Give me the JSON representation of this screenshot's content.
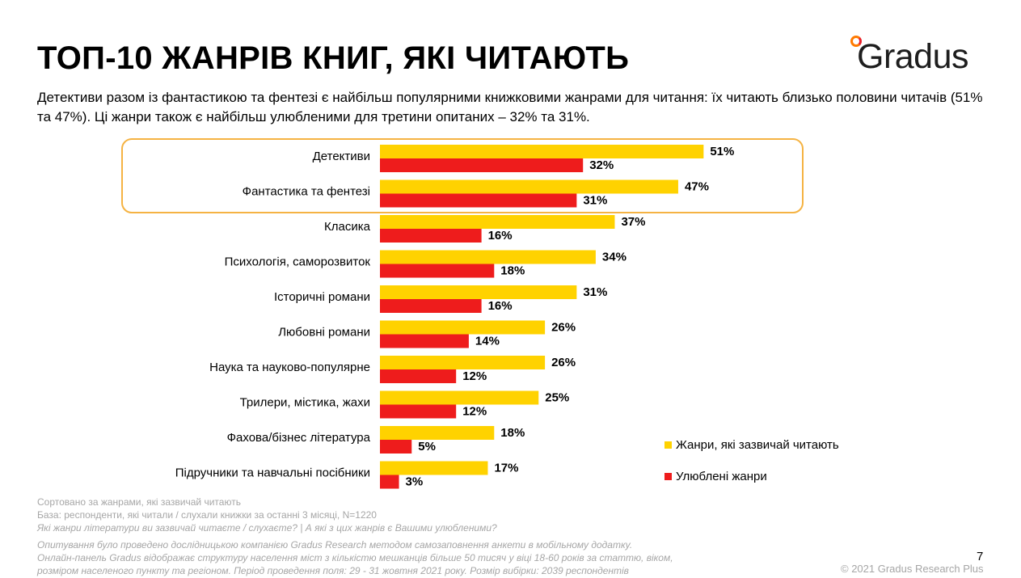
{
  "header": {
    "title": "ТОП-10 ЖАНРІВ КНИГ, ЯКІ ЧИТАЮТЬ",
    "subtitle": "Детективи разом із фантастикою та фентезі є найбільш популярними книжковими жанрами для читання: їх читають близько половини читачів (51% та 47%). Ці жанри також є найбільш улюбленими для третини опитаних – 32% та 31%.",
    "logo_text": "Gradus"
  },
  "colors": {
    "primary": "#ffd200",
    "secondary": "#ee1c1c",
    "highlight": "#f5b343",
    "accent": "#ff7a00"
  },
  "chart_data": {
    "type": "bar",
    "orientation": "horizontal",
    "value_suffix": "%",
    "categories": [
      "Детективи",
      "Фантастика та фентезі",
      "Класика",
      "Психологія, саморозвиток",
      "Історичні романи",
      "Любовні романи",
      "Наука та науково-популярне",
      "Трилери, містика, жахи",
      "Фахова/бізнес література",
      "Підручники та навчальні посібники"
    ],
    "series": [
      {
        "name": "Жанри, які зазвичай читають",
        "values": [
          51,
          47,
          37,
          34,
          31,
          26,
          26,
          25,
          18,
          17
        ]
      },
      {
        "name": "Улюблені жанри",
        "values": [
          32,
          31,
          16,
          18,
          16,
          14,
          12,
          12,
          5,
          3
        ]
      }
    ],
    "highlighted_categories": [
      "Детективи",
      "Фантастика та фентезі"
    ],
    "legend_position": "right"
  },
  "footnotes": {
    "sorted": "Сортовано за жанрами, які зазвичай читають",
    "base": "База: респонденти, які читали / слухали книжки за останні 3 місяці, N=1220",
    "question": "Які жанри літератури ви зазвичай читаєте / слухаєте? | А які з цих жанрів є Вашими улюбленими?",
    "method_1": "Опитування було проведено дослідницькою компанією Gradus Research методом самозаповнення анкети в мобільному додатку.",
    "method_2": "Онлайн-панель Gradus відображає структуру населення міст з кількістю мешканців більше 50 тисяч у віці 18-60 років за статтю, віком,",
    "method_3": "розміром населеного пункту та регіоном. Період проведення поля: 29 - 31 жовтня 2021 року. Розмір вибірки: 2039 респондентів"
  },
  "page_number": "7",
  "copyright": "© 2021 Gradus Research Plus"
}
